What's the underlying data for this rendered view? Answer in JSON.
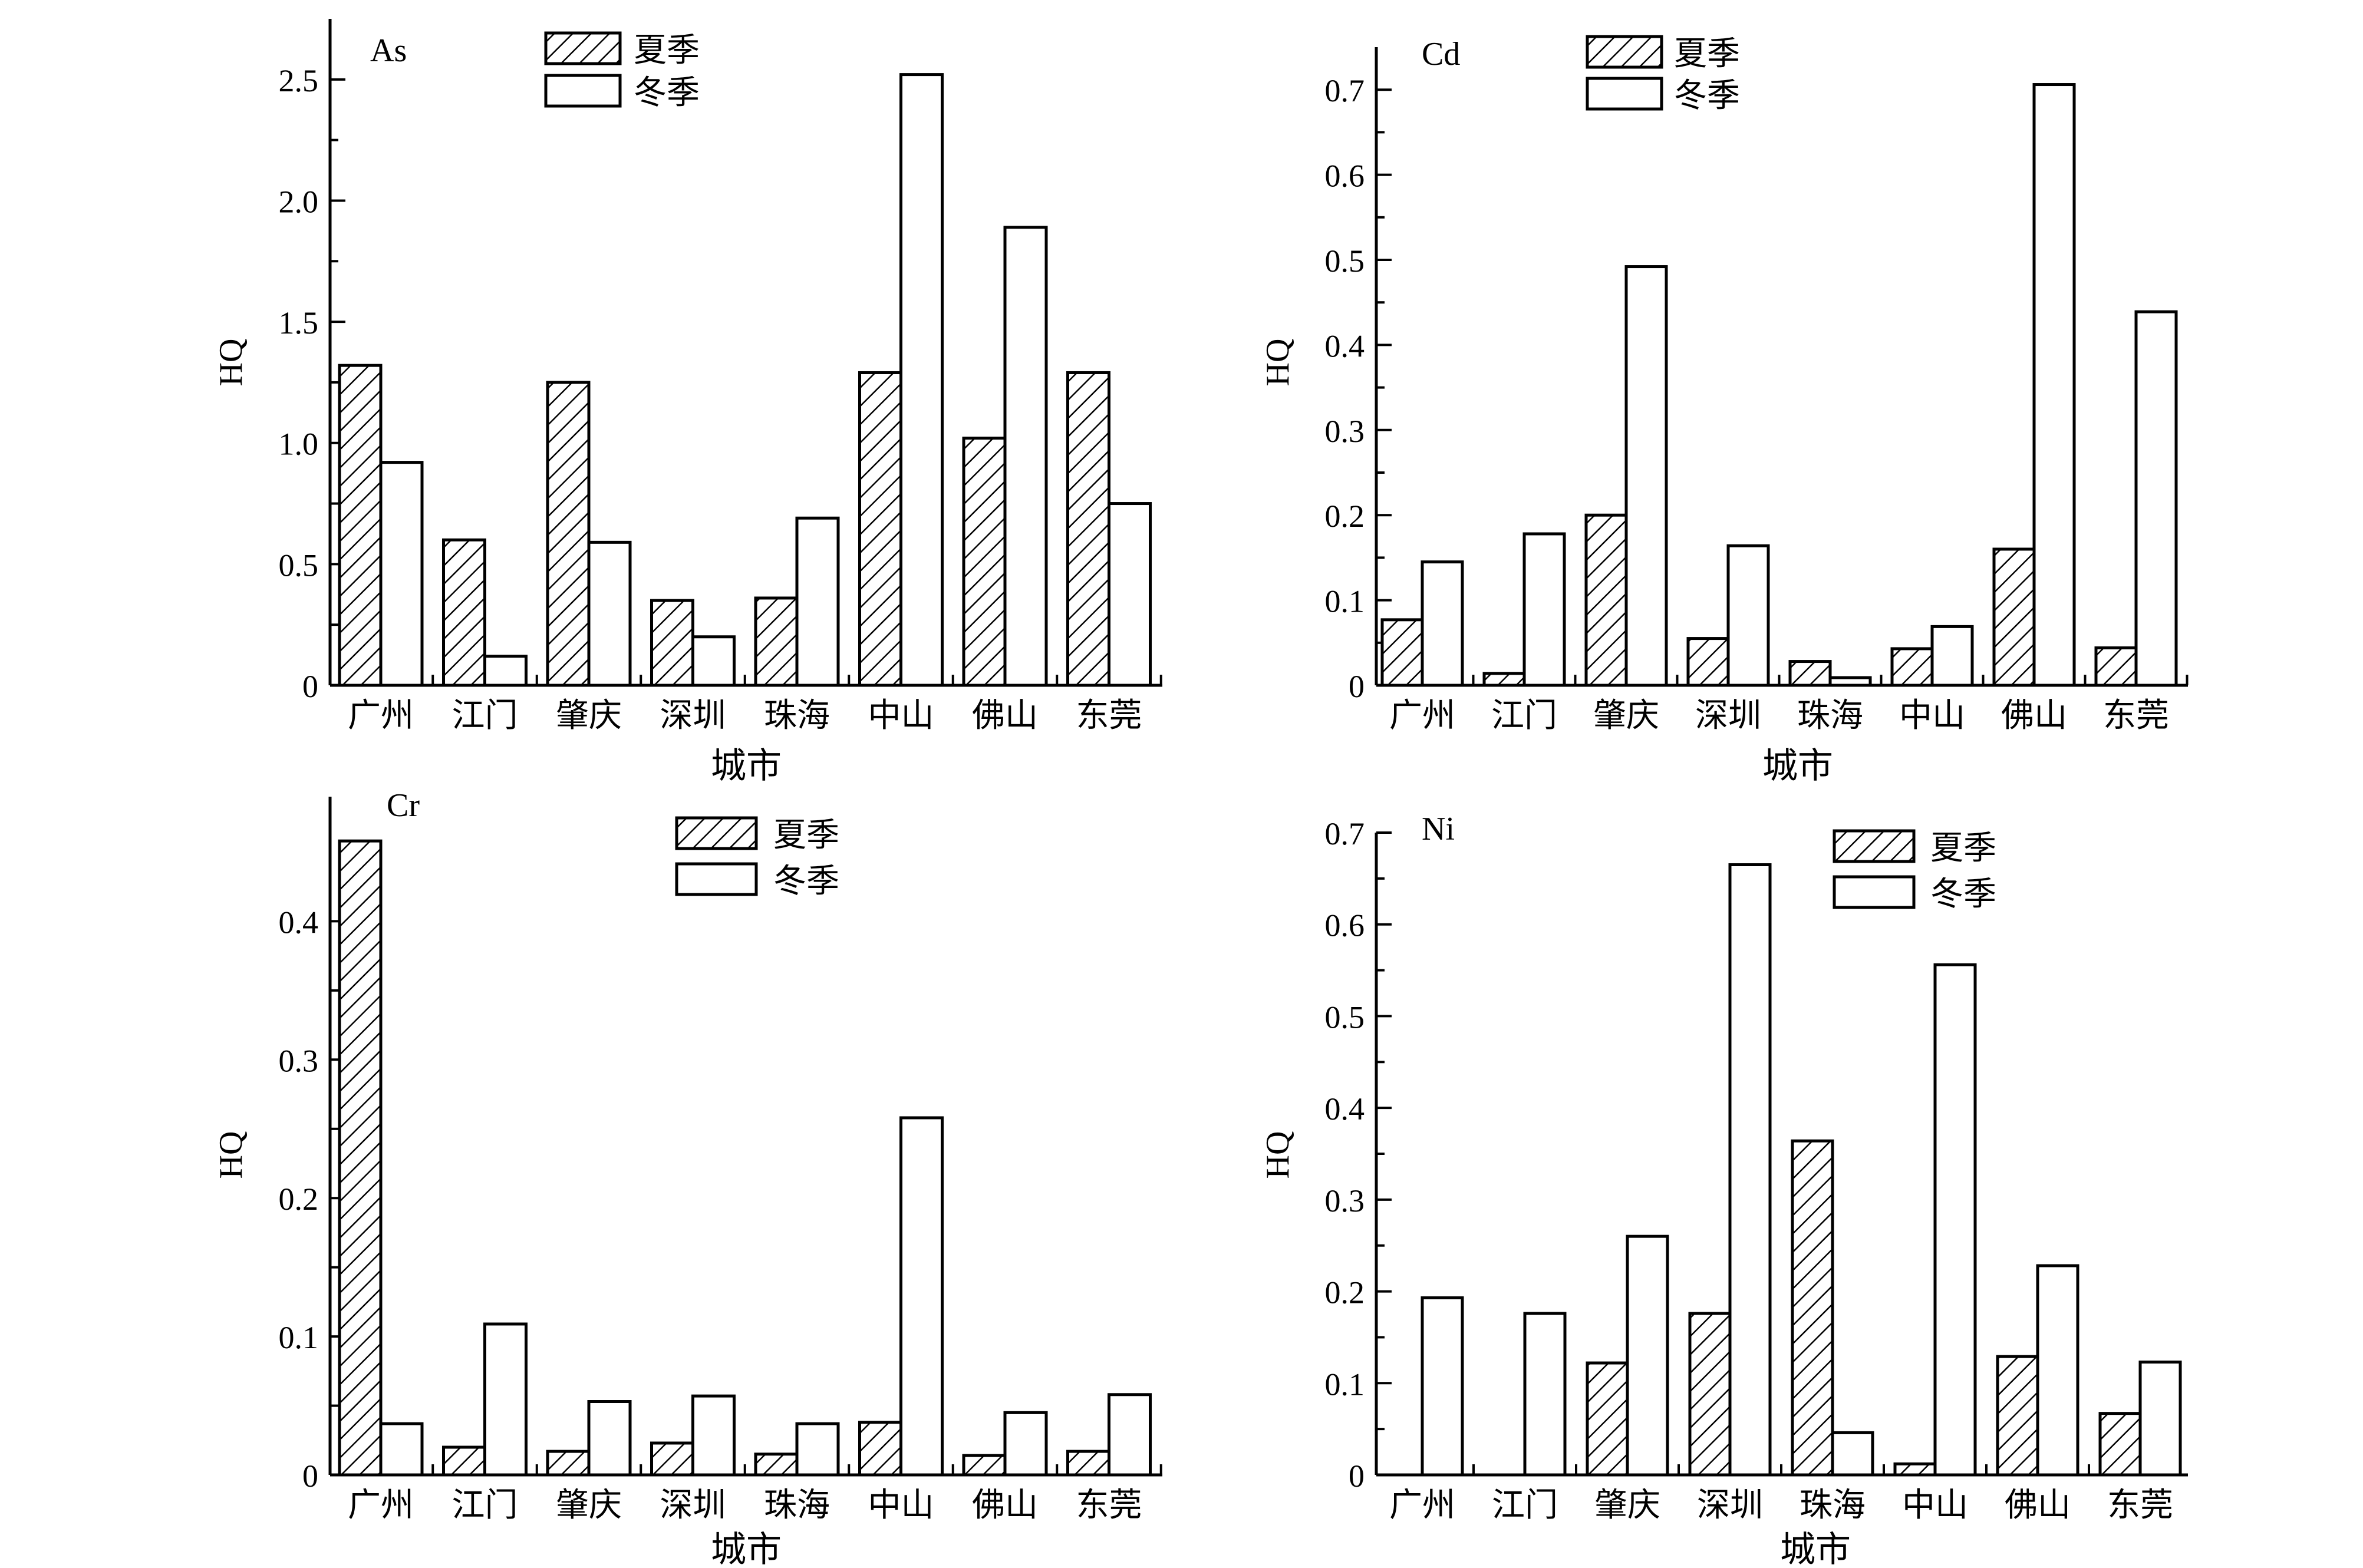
{
  "chart_data": [
    {
      "type": "bar",
      "title": "As",
      "xlabel": "城市",
      "ylabel": "HQ",
      "categories": [
        "广州",
        "江门",
        "肇庆",
        "深圳",
        "珠海",
        "中山",
        "佛山",
        "东莞"
      ],
      "series": [
        {
          "name": "夏季",
          "values": [
            1.32,
            0.6,
            1.25,
            0.35,
            0.36,
            1.29,
            1.02,
            1.29
          ]
        },
        {
          "name": "冬季",
          "values": [
            0.92,
            0.12,
            0.59,
            0.2,
            0.69,
            2.52,
            1.89,
            0.75
          ]
        }
      ],
      "ylim": [
        0,
        2.75
      ],
      "yticks": [
        "0",
        "0.5",
        "1.0",
        "1.5",
        "2.0",
        "2.5"
      ],
      "ytick_values": [
        0,
        0.5,
        1.0,
        1.5,
        2.0,
        2.5
      ],
      "legend": "top-center",
      "grid": false
    },
    {
      "type": "bar",
      "title": "Cd",
      "xlabel": "城市",
      "ylabel": "HQ",
      "categories": [
        "广州",
        "江门",
        "肇庆",
        "深圳",
        "珠海",
        "中山",
        "佛山",
        "东莞"
      ],
      "series": [
        {
          "name": "夏季",
          "values": [
            0.077,
            0.014,
            0.2,
            0.055,
            0.028,
            0.043,
            0.16,
            0.044
          ]
        },
        {
          "name": "冬季",
          "values": [
            0.145,
            0.178,
            0.492,
            0.164,
            0.009,
            0.069,
            0.706,
            0.439
          ]
        }
      ],
      "ylim": [
        0,
        0.75
      ],
      "yticks": [
        "0",
        "0.1",
        "0.2",
        "0.3",
        "0.4",
        "0.5",
        "0.6",
        "0.7"
      ],
      "ytick_values": [
        0,
        0.1,
        0.2,
        0.3,
        0.4,
        0.5,
        0.6,
        0.7
      ],
      "legend": "top-center",
      "grid": false
    },
    {
      "type": "bar",
      "title": "Cr",
      "xlabel": "城市",
      "ylabel": "HQ",
      "categories": [
        "广州",
        "江门",
        "肇庆",
        "深圳",
        "珠海",
        "中山",
        "佛山",
        "东莞"
      ],
      "series": [
        {
          "name": "夏季",
          "values": [
            0.458,
            0.02,
            0.017,
            0.023,
            0.015,
            0.038,
            0.014,
            0.017
          ]
        },
        {
          "name": "冬季",
          "values": [
            0.037,
            0.109,
            0.053,
            0.057,
            0.037,
            0.258,
            0.045,
            0.058
          ]
        }
      ],
      "ylim": [
        0,
        0.49
      ],
      "yticks": [
        "0",
        "0.1",
        "0.2",
        "0.3",
        "0.4"
      ],
      "ytick_values": [
        0,
        0.1,
        0.2,
        0.3,
        0.4
      ],
      "legend": "top-center",
      "grid": false
    },
    {
      "type": "bar",
      "title": "Ni",
      "xlabel": "城市",
      "ylabel": "HQ",
      "categories": [
        "广州",
        "江门",
        "肇庆",
        "深圳",
        "珠海",
        "中山",
        "佛山",
        "东莞"
      ],
      "series": [
        {
          "name": "夏季",
          "values": [
            0,
            0,
            0.122,
            0.176,
            0.364,
            0.012,
            0.129,
            0.067
          ]
        },
        {
          "name": "冬季",
          "values": [
            0.193,
            0.176,
            0.26,
            0.665,
            0.046,
            0.556,
            0.228,
            0.123
          ]
        }
      ],
      "ylim": [
        0,
        0.7
      ],
      "yticks": [
        "0",
        "0.1",
        "0.2",
        "0.3",
        "0.4",
        "0.5",
        "0.6",
        "0.7"
      ],
      "ytick_values": [
        0,
        0.1,
        0.2,
        0.3,
        0.4,
        0.5,
        0.6,
        0.7
      ],
      "legend": "top-center",
      "grid": false
    }
  ]
}
